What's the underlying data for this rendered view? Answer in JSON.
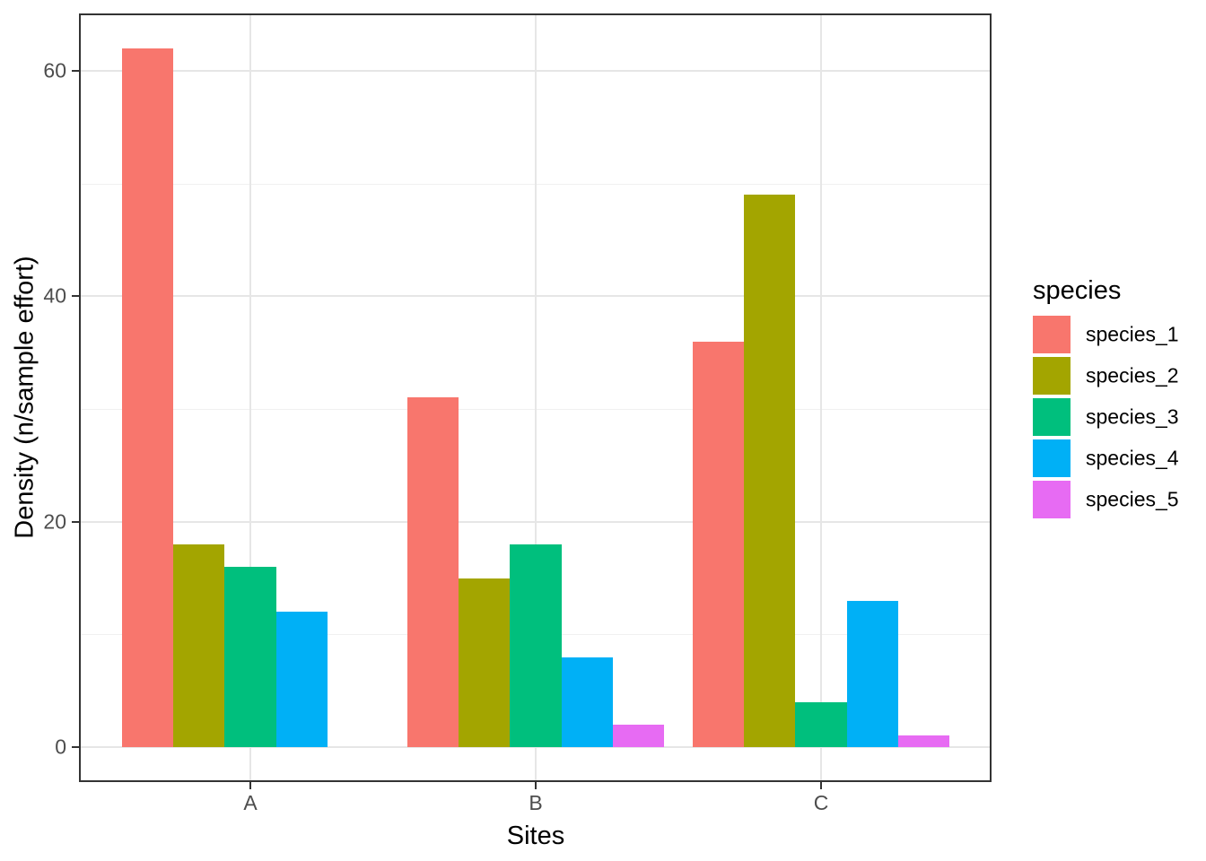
{
  "chart_data": {
    "type": "bar",
    "bar_layout": "dodged",
    "title": "",
    "xlabel": "Sites",
    "ylabel": "Density (n/sample effort)",
    "categories": [
      "A",
      "B",
      "C"
    ],
    "series": [
      {
        "name": "species_1",
        "color": "#F8766D",
        "values": [
          62,
          31,
          36
        ]
      },
      {
        "name": "species_2",
        "color": "#A3A500",
        "values": [
          18,
          15,
          49
        ]
      },
      {
        "name": "species_3",
        "color": "#00BF7D",
        "values": [
          16,
          18,
          4
        ]
      },
      {
        "name": "species_4",
        "color": "#00B0F6",
        "values": [
          12,
          8,
          13
        ]
      },
      {
        "name": "species_5",
        "color": "#E76BF3",
        "values": [
          0,
          2,
          1
        ]
      }
    ],
    "y_ticks": [
      0,
      20,
      40,
      60
    ],
    "y_minor_ticks": [
      10,
      30,
      50
    ],
    "ylim": [
      0,
      65
    ],
    "grid": true,
    "legend": {
      "title": "species",
      "position": "right",
      "entries": [
        "species_1",
        "species_2",
        "species_3",
        "species_4",
        "species_5"
      ]
    }
  },
  "style": {
    "background": "#FFFFFF",
    "panel_background": "#FFFFFF",
    "panel_border": "#333333",
    "grid_major_color": "#E6E6E6",
    "grid_minor_color": "#F0F0F0",
    "axis_text_color": "#4D4D4D",
    "axis_title_color": "#000000"
  }
}
